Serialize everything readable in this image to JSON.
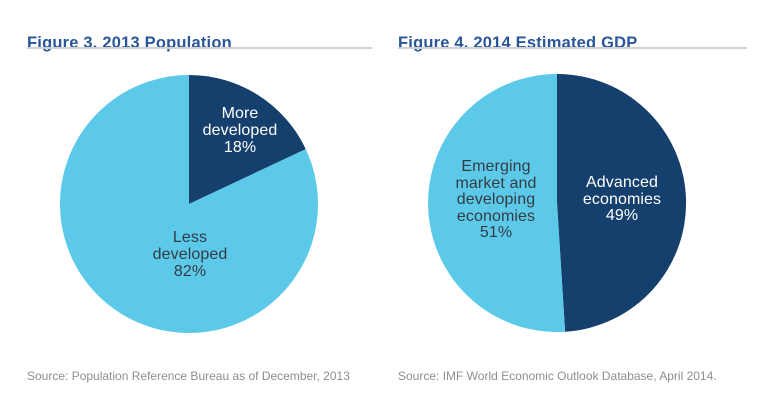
{
  "page": {
    "background": "#ffffff"
  },
  "colors": {
    "title_blue": "#2a5699",
    "divider_gray": "#d0d0d0",
    "source_gray": "#8e8e8e",
    "dark_slice": "#153f6c",
    "light_slice": "#5cc9e9",
    "label_on_light": "#333c44",
    "label_on_dark": "#ffffff"
  },
  "figures": [
    {
      "title": "Figure 3. 2013 Population",
      "source": "Source: Population Reference Bureau as of December, 2013",
      "slices": [
        {
          "name": "More developed",
          "value": 18,
          "color": "#153f6c",
          "label": "More\ndeveloped\n18%",
          "label_color": "#ffffff"
        },
        {
          "name": "Less developed",
          "value": 82,
          "color": "#5cc9e9",
          "label": "Less\ndeveloped\n82%",
          "label_color": "#333c44"
        }
      ]
    },
    {
      "title": "Figure 4. 2014 Estimated GDP",
      "source": "Source: IMF World Economic Outlook Database, April 2014.",
      "slices": [
        {
          "name": "Advanced economies",
          "value": 49,
          "color": "#153f6c",
          "label": "Advanced\neconomies\n49%",
          "label_color": "#ffffff"
        },
        {
          "name": "Emerging market and developing economies",
          "value": 51,
          "color": "#5cc9e9",
          "label": "Emerging\nmarket and\ndeveloping\neconomies\n51%",
          "label_color": "#333c44"
        }
      ]
    }
  ],
  "chart_data": [
    {
      "type": "pie",
      "title": "Figure 3. 2013 Population",
      "categories": [
        "More developed",
        "Less developed"
      ],
      "values": [
        18,
        82
      ],
      "unit": "percent",
      "colors": [
        "#153f6c",
        "#5cc9e9"
      ],
      "start_angle_deg": 0,
      "direction": "clockwise",
      "legend_position": "none",
      "labels_inside_slices": true,
      "source": "Source: Population Reference Bureau as of December, 2013"
    },
    {
      "type": "pie",
      "title": "Figure 4. 2014 Estimated GDP",
      "categories": [
        "Advanced economies",
        "Emerging market and developing economies"
      ],
      "values": [
        49,
        51
      ],
      "unit": "percent",
      "colors": [
        "#153f6c",
        "#5cc9e9"
      ],
      "start_angle_deg": 0,
      "direction": "clockwise",
      "legend_position": "none",
      "labels_inside_slices": true,
      "source": "Source: IMF World Economic Outlook Database, April 2014."
    }
  ]
}
